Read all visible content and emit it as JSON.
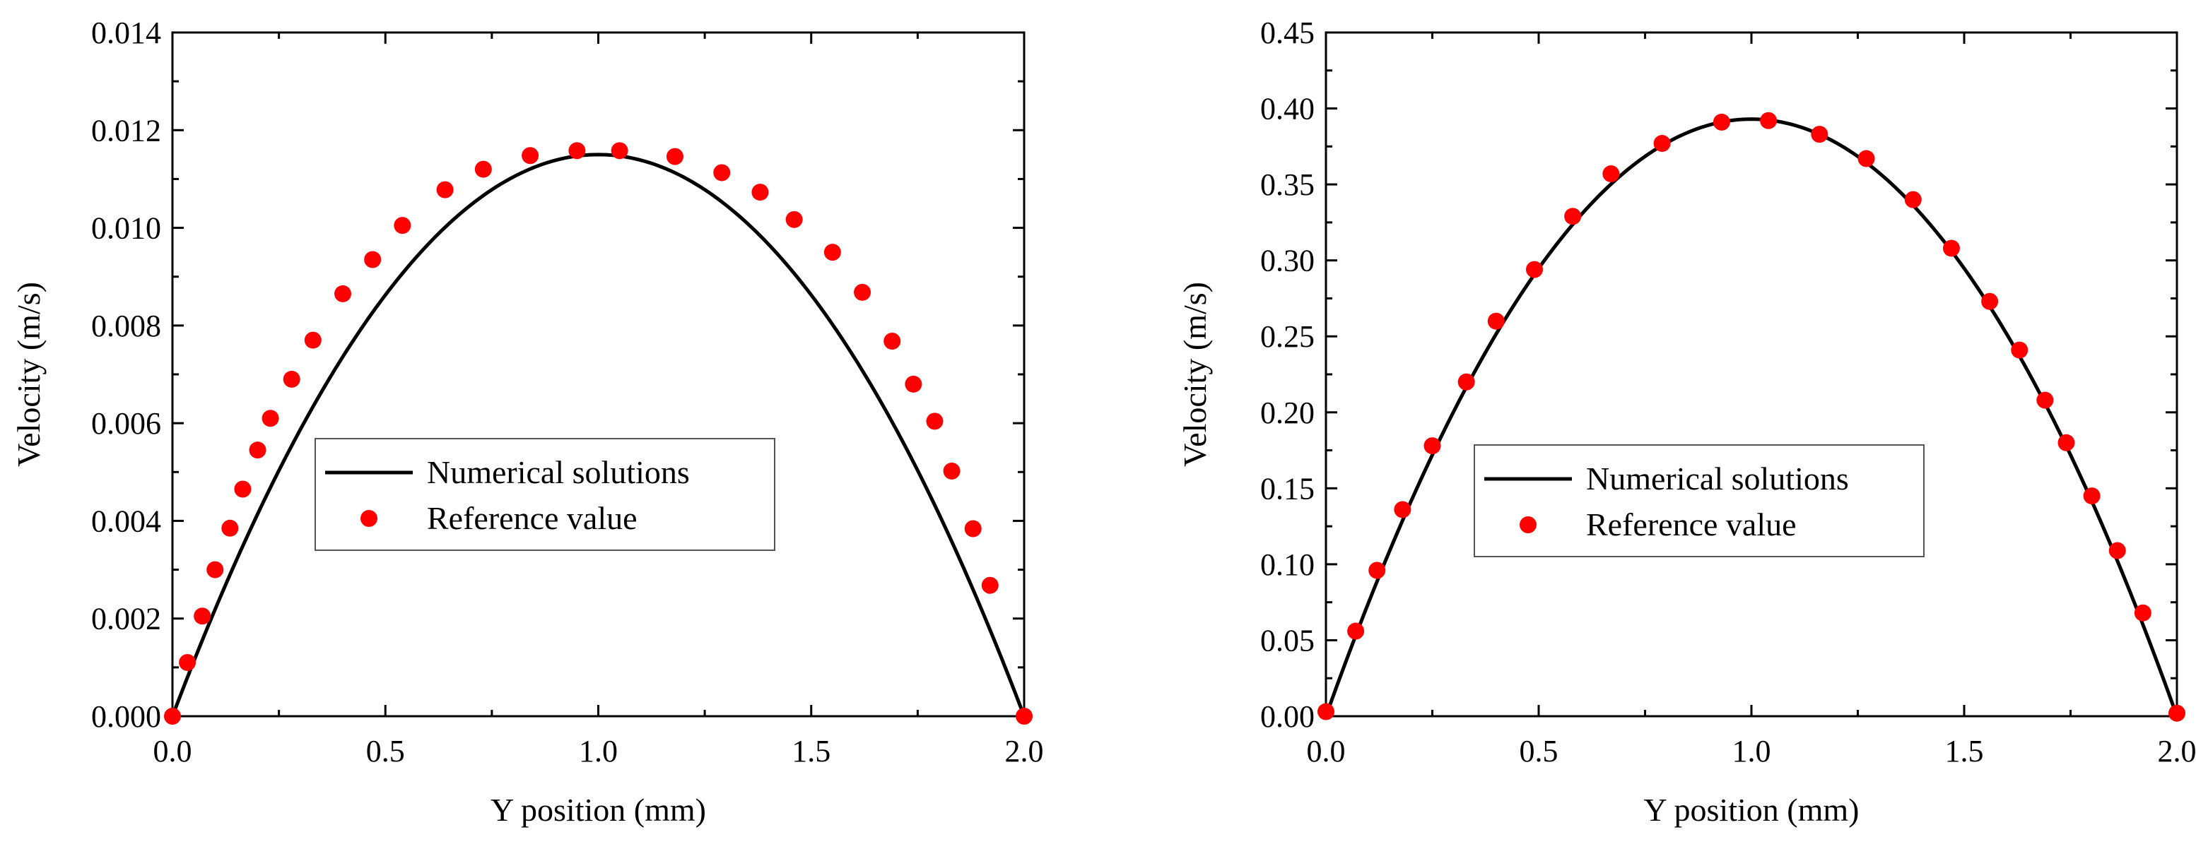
{
  "chart_data": [
    {
      "type": "line+scatter",
      "title": "",
      "xlabel": "Y position (mm)",
      "ylabel": "Velocity (m/s)",
      "xlim": [
        0,
        2.0
      ],
      "ylim": [
        0,
        0.014
      ],
      "x_ticks": [
        "0.0",
        "0.5",
        "1.0",
        "1.5",
        "2.0"
      ],
      "y_ticks": [
        "0.000",
        "0.002",
        "0.004",
        "0.006",
        "0.008",
        "0.010",
        "0.012",
        "0.014"
      ],
      "legend": {
        "location": "center-left",
        "line_label": "Numerical solutions",
        "dot_label": "Reference value"
      },
      "series": [
        {
          "name": "Numerical solutions",
          "kind": "line",
          "color": "#000000",
          "profile": "parabola",
          "peak": 0.0115,
          "x_range": [
            0,
            2.0
          ]
        },
        {
          "name": "Reference value",
          "kind": "scatter",
          "color": "#ff0000",
          "x": [
            0.0,
            0.035,
            0.07,
            0.1,
            0.135,
            0.165,
            0.2,
            0.23,
            0.28,
            0.33,
            0.4,
            0.47,
            0.54,
            0.64,
            0.73,
            0.84,
            0.95,
            1.05,
            1.18,
            1.29,
            1.38,
            1.46,
            1.55,
            1.62,
            1.69,
            1.74,
            1.79,
            1.83,
            1.88,
            1.92,
            2.0
          ],
          "y": [
            0.0,
            0.0011,
            0.00205,
            0.003,
            0.00385,
            0.00465,
            0.00545,
            0.0061,
            0.0069,
            0.0077,
            0.00865,
            0.00935,
            0.01005,
            0.01078,
            0.0112,
            0.01148,
            0.01158,
            0.01158,
            0.01146,
            0.01113,
            0.01073,
            0.01017,
            0.0095,
            0.00868,
            0.00768,
            0.0068,
            0.00604,
            0.00502,
            0.00384,
            0.00268,
            0.0
          ]
        }
      ]
    },
    {
      "type": "line+scatter",
      "title": "",
      "xlabel": "Y position (mm)",
      "ylabel": "Velocity (m/s)",
      "xlim": [
        0,
        2.0
      ],
      "ylim": [
        0,
        0.45
      ],
      "x_ticks": [
        "0.0",
        "0.5",
        "1.0",
        "1.5",
        "2.0"
      ],
      "y_ticks": [
        "0.00",
        "0.05",
        "0.10",
        "0.15",
        "0.20",
        "0.25",
        "0.30",
        "0.35",
        "0.40",
        "0.45"
      ],
      "legend": {
        "location": "center-left",
        "line_label": "Numerical solutions",
        "dot_label": "Reference value"
      },
      "series": [
        {
          "name": "Numerical solutions",
          "kind": "line",
          "color": "#000000",
          "profile": "parabola",
          "peak": 0.393,
          "x_range": [
            0,
            2.0
          ]
        },
        {
          "name": "Reference value",
          "kind": "scatter",
          "color": "#ff0000",
          "x": [
            0.0,
            0.07,
            0.12,
            0.18,
            0.25,
            0.33,
            0.4,
            0.49,
            0.58,
            0.67,
            0.79,
            0.93,
            1.04,
            1.16,
            1.27,
            1.38,
            1.47,
            1.56,
            1.63,
            1.69,
            1.74,
            1.8,
            1.86,
            1.92,
            2.0
          ],
          "y": [
            0.003,
            0.056,
            0.096,
            0.136,
            0.178,
            0.22,
            0.26,
            0.294,
            0.329,
            0.357,
            0.377,
            0.391,
            0.392,
            0.383,
            0.367,
            0.34,
            0.308,
            0.273,
            0.241,
            0.208,
            0.18,
            0.145,
            0.109,
            0.068,
            0.002
          ]
        }
      ]
    }
  ]
}
